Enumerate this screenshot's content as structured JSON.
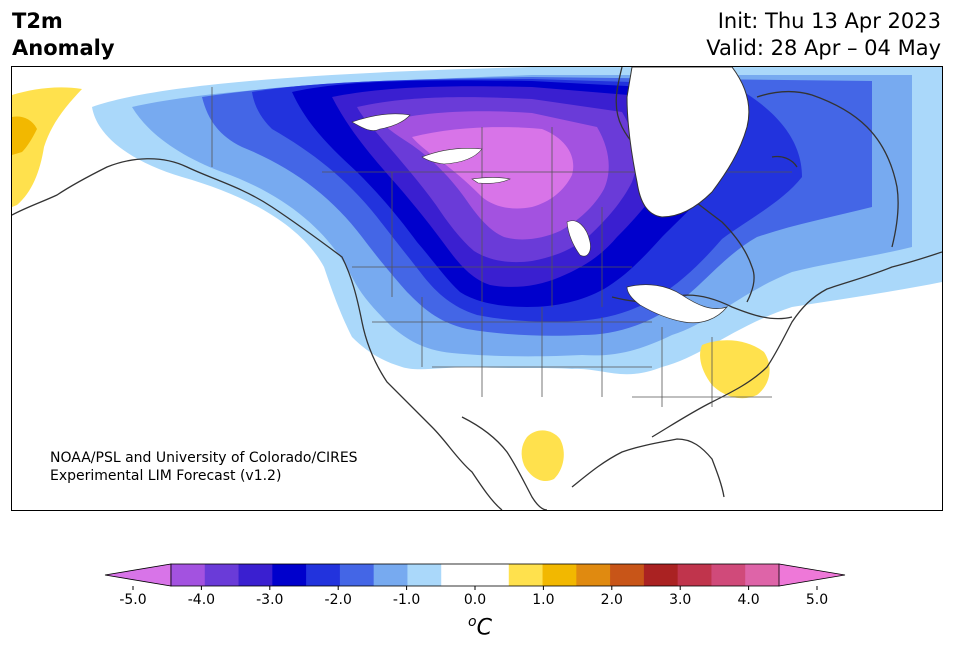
{
  "header": {
    "title_line1": "T2m",
    "title_line2": "Anomaly",
    "init": "Init: Thu 13 Apr 2023",
    "valid": "Valid: 28 Apr – 04 May"
  },
  "map": {
    "credit_line1": "NOAA/PSL and University of Colorado/CIRES",
    "credit_line2": "Experimental LIM Forecast (v1.2)"
  },
  "colorbar": {
    "ticks": [
      "-5.0",
      "-4.0",
      "-3.0",
      "-2.0",
      "-1.0",
      "0.0",
      "1.0",
      "2.0",
      "3.0",
      "4.0",
      "5.0"
    ],
    "unit_base": "C",
    "unit_sup": "o",
    "colors": [
      "#d874e8",
      "#a352e0",
      "#6a3bd8",
      "#3a1fd0",
      "#0000cc",
      "#2233dd",
      "#4466e6",
      "#77aaf0",
      "#aad8fa",
      "#ffffff",
      "#ffffff",
      "#ffe14d",
      "#f2b800",
      "#e08a10",
      "#c85518",
      "#aa2222",
      "#c0344c",
      "#d04a7a",
      "#de64a8",
      "#ee78d8"
    ]
  }
}
